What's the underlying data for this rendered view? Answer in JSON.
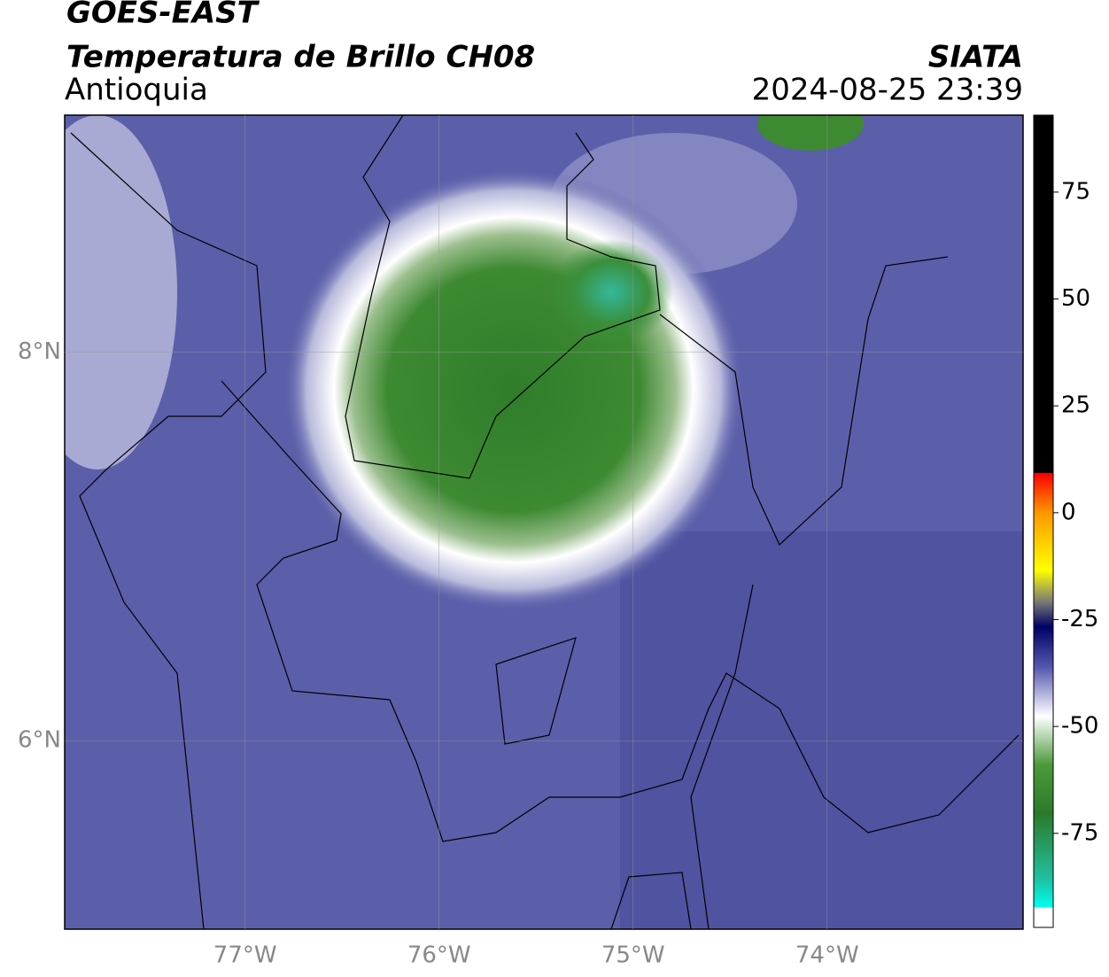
{
  "header": {
    "title": "GOES-EAST",
    "subtitle": "Temperatura de Brillo CH08",
    "region": "Antioquia",
    "source": "SIATA",
    "timestamp": "2024-08-25 23:39"
  },
  "map": {
    "xlim": [
      -77.93,
      -72.99
    ],
    "ylim": [
      5.03,
      9.22
    ],
    "xticks": [
      {
        "value": -77,
        "label": "77°W"
      },
      {
        "value": -76,
        "label": "76°W"
      },
      {
        "value": -75,
        "label": "75°W"
      },
      {
        "value": -74,
        "label": "74°W"
      }
    ],
    "yticks": [
      {
        "value": 8,
        "label": "8°N"
      },
      {
        "value": 6,
        "label": "6°N"
      }
    ],
    "grid": true
  },
  "colorbar": {
    "lim": [
      -97,
      93
    ],
    "ticks": [
      75,
      50,
      25,
      0,
      -25,
      -50,
      -75
    ]
  }
}
